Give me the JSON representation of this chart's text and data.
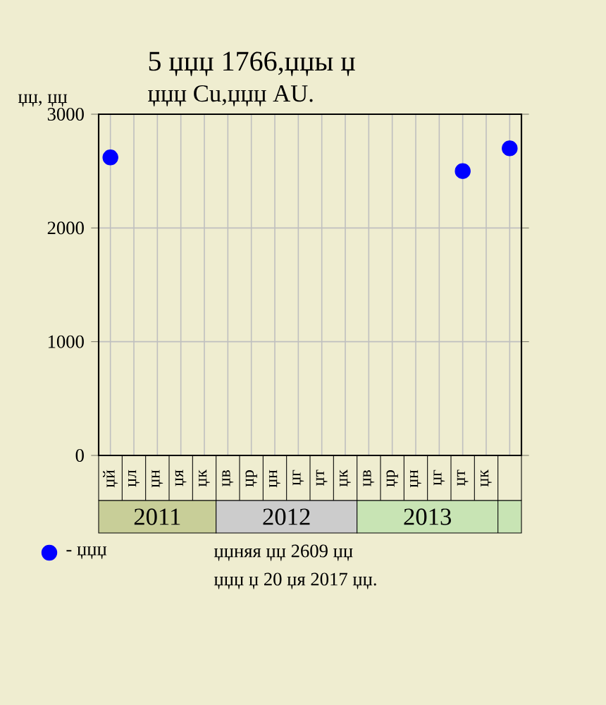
{
  "chart_data": {
    "type": "scatter",
    "title": "5 џџџ 1766,џџы џ",
    "subtitle": "џџџ Cu,џџџ AU.",
    "ylabel": "џџ, џџ",
    "categories": [
      "џй",
      "џл",
      "џн",
      "џя",
      "џк",
      "џв",
      "џр",
      "џн",
      "џг",
      "џт",
      "џк",
      "џв",
      "џр",
      "џн",
      "џг",
      "џт",
      "џк",
      null
    ],
    "series": [
      {
        "name": "- џџџ",
        "color": "#0000ff",
        "values": [
          2620,
          null,
          null,
          null,
          null,
          null,
          null,
          null,
          null,
          null,
          null,
          null,
          null,
          null,
          null,
          2500,
          null,
          2700
        ]
      }
    ],
    "ylim": [
      0,
      3000
    ],
    "yticks": [
      0,
      1000,
      2000,
      3000
    ],
    "grid": true,
    "legend": "bottom left",
    "marker": "circle",
    "annotations": [
      "2011",
      "2012",
      "2013",
      "џџняя џџ 2609 џџ",
      "џџџ џ 20 џя 2017 џџ."
    ]
  }
}
